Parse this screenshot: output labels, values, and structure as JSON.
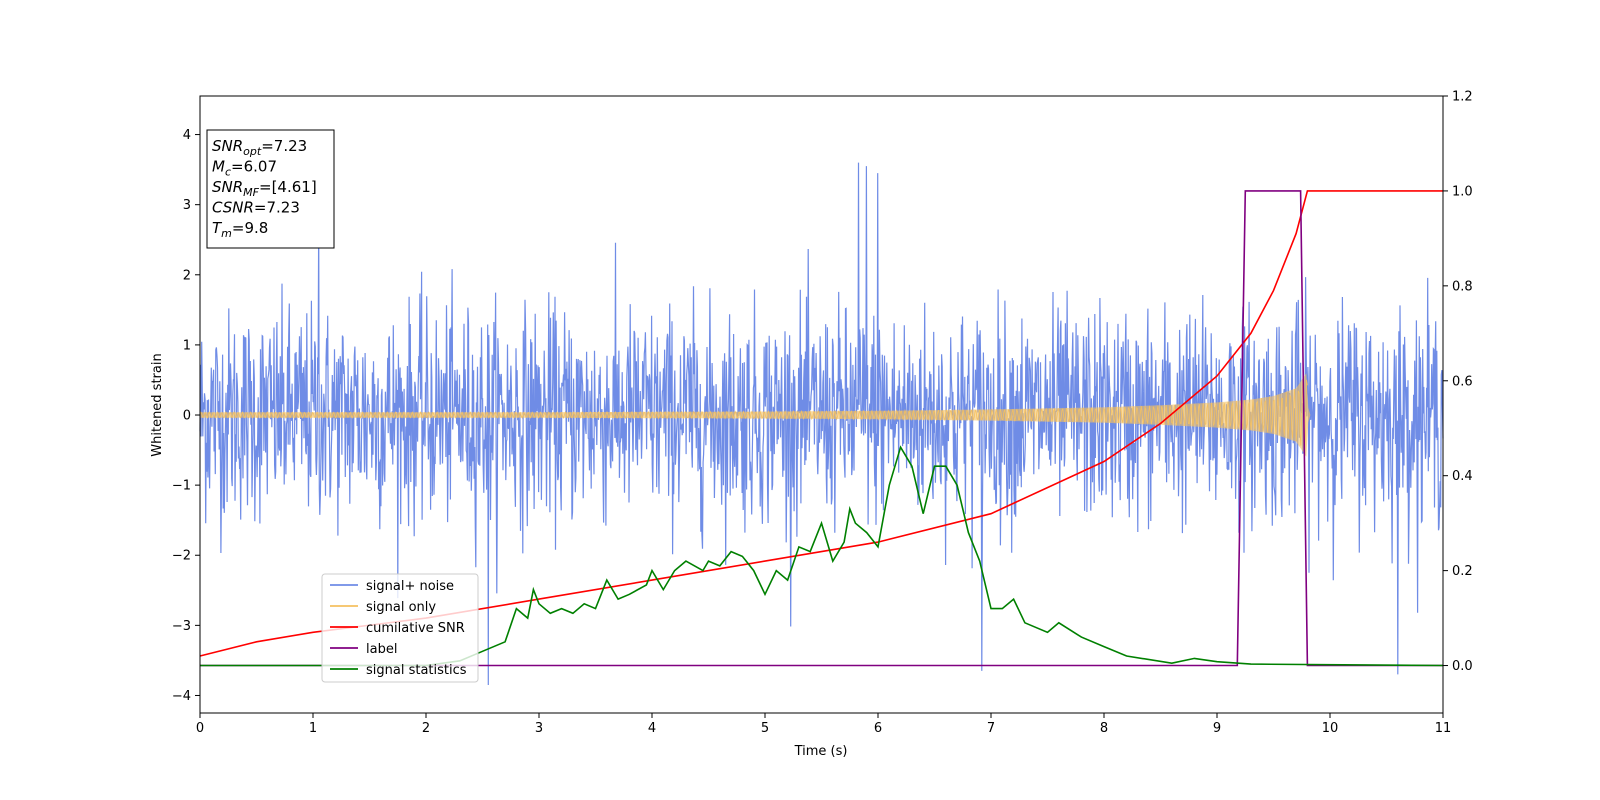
{
  "chart_data": {
    "type": "line",
    "xlabel": "Time (s)",
    "ylabel": "Whitened strain",
    "xlim": [
      0,
      11
    ],
    "ylim_left": [
      -4.25,
      4.55
    ],
    "ylim_right": [
      -0.1,
      1.2
    ],
    "x_ticks": [
      "0",
      "1",
      "2",
      "3",
      "4",
      "5",
      "6",
      "7",
      "8",
      "9",
      "10",
      "11"
    ],
    "y_ticks_left": [
      "−4",
      "−3",
      "−2",
      "−1",
      "0",
      "1",
      "2",
      "3",
      "4"
    ],
    "y_ticks_right": [
      "0.0",
      "0.2",
      "0.4",
      "0.6",
      "0.8",
      "1.0",
      "1.2"
    ],
    "grid": false,
    "legend_position": "lower-left",
    "info_box": {
      "lines": [
        {
          "symbol": "SNR",
          "sub": "opt",
          "rest": "=7.23"
        },
        {
          "symbol": "M",
          "sub": "c",
          "rest": "=6.07"
        },
        {
          "symbol": "SNR",
          "sub": "MF",
          "rest": "=[4.61]"
        },
        {
          "symbol": "CSNR",
          "sub": "",
          "rest": "=7.23"
        },
        {
          "symbol": "T",
          "sub": "m",
          "rest": "=9.8"
        }
      ]
    },
    "series": [
      {
        "name": "signal+ noise",
        "axis": "left",
        "color": "#6f8ce6",
        "description_values": {
          "mean": 0,
          "std": 0.75,
          "min": -3.85,
          "max": 3.6,
          "n_samples": 2200
        },
        "extreme_points": [
          [
            2.55,
            -3.85
          ],
          [
            10.6,
            -3.7
          ],
          [
            5.83,
            3.6
          ],
          [
            5.9,
            3.55
          ],
          [
            6.92,
            -3.65
          ],
          [
            1.05,
            2.78
          ],
          [
            6.0,
            3.45
          ]
        ]
      },
      {
        "name": "signal only",
        "axis": "left",
        "color": "#f5c160",
        "envelope": [
          [
            0,
            0.04
          ],
          [
            1,
            0.04
          ],
          [
            2,
            0.04
          ],
          [
            3,
            0.04
          ],
          [
            4,
            0.045
          ],
          [
            5,
            0.05
          ],
          [
            6,
            0.06
          ],
          [
            7,
            0.08
          ],
          [
            8,
            0.11
          ],
          [
            8.5,
            0.14
          ],
          [
            9,
            0.18
          ],
          [
            9.3,
            0.22
          ],
          [
            9.5,
            0.27
          ],
          [
            9.7,
            0.38
          ],
          [
            9.8,
            0.62
          ],
          [
            9.81,
            0.0
          ],
          [
            11,
            0.0
          ]
        ]
      },
      {
        "name": "cumilative SNR",
        "axis": "right",
        "color": "#ff0000",
        "points": [
          [
            0,
            0.02
          ],
          [
            0.5,
            0.05
          ],
          [
            1,
            0.07
          ],
          [
            2,
            0.1
          ],
          [
            3,
            0.14
          ],
          [
            4,
            0.18
          ],
          [
            5,
            0.22
          ],
          [
            6,
            0.26
          ],
          [
            7,
            0.32
          ],
          [
            8,
            0.43
          ],
          [
            8.5,
            0.51
          ],
          [
            9,
            0.61
          ],
          [
            9.3,
            0.7
          ],
          [
            9.5,
            0.79
          ],
          [
            9.7,
            0.91
          ],
          [
            9.8,
            1.0
          ],
          [
            11,
            1.0
          ]
        ]
      },
      {
        "name": "label",
        "axis": "right",
        "color": "#800080",
        "points": [
          [
            0,
            0.0
          ],
          [
            9.18,
            0.0
          ],
          [
            9.25,
            1.0
          ],
          [
            9.74,
            1.0
          ],
          [
            9.8,
            0.0
          ],
          [
            11,
            0.0
          ]
        ]
      },
      {
        "name": "signal statistics",
        "axis": "right",
        "color": "#008000",
        "points": [
          [
            0,
            0.0
          ],
          [
            2.0,
            0.0
          ],
          [
            2.3,
            0.01
          ],
          [
            2.5,
            0.03
          ],
          [
            2.7,
            0.05
          ],
          [
            2.8,
            0.12
          ],
          [
            2.9,
            0.1
          ],
          [
            2.95,
            0.16
          ],
          [
            3.0,
            0.13
          ],
          [
            3.1,
            0.11
          ],
          [
            3.2,
            0.12
          ],
          [
            3.3,
            0.11
          ],
          [
            3.4,
            0.13
          ],
          [
            3.5,
            0.12
          ],
          [
            3.6,
            0.18
          ],
          [
            3.7,
            0.14
          ],
          [
            3.8,
            0.15
          ],
          [
            3.95,
            0.17
          ],
          [
            4.0,
            0.2
          ],
          [
            4.1,
            0.16
          ],
          [
            4.2,
            0.2
          ],
          [
            4.3,
            0.22
          ],
          [
            4.45,
            0.2
          ],
          [
            4.5,
            0.22
          ],
          [
            4.6,
            0.21
          ],
          [
            4.7,
            0.24
          ],
          [
            4.8,
            0.23
          ],
          [
            4.9,
            0.2
          ],
          [
            5.0,
            0.15
          ],
          [
            5.1,
            0.2
          ],
          [
            5.2,
            0.18
          ],
          [
            5.3,
            0.25
          ],
          [
            5.4,
            0.24
          ],
          [
            5.5,
            0.3
          ],
          [
            5.6,
            0.22
          ],
          [
            5.7,
            0.26
          ],
          [
            5.75,
            0.33
          ],
          [
            5.8,
            0.3
          ],
          [
            5.9,
            0.28
          ],
          [
            6.0,
            0.25
          ],
          [
            6.1,
            0.38
          ],
          [
            6.2,
            0.46
          ],
          [
            6.3,
            0.42
          ],
          [
            6.4,
            0.32
          ],
          [
            6.5,
            0.42
          ],
          [
            6.6,
            0.42
          ],
          [
            6.7,
            0.38
          ],
          [
            6.8,
            0.28
          ],
          [
            6.9,
            0.22
          ],
          [
            7.0,
            0.12
          ],
          [
            7.1,
            0.12
          ],
          [
            7.2,
            0.14
          ],
          [
            7.3,
            0.09
          ],
          [
            7.5,
            0.07
          ],
          [
            7.6,
            0.09
          ],
          [
            7.8,
            0.06
          ],
          [
            8.0,
            0.04
          ],
          [
            8.2,
            0.02
          ],
          [
            8.6,
            0.005
          ],
          [
            8.8,
            0.015
          ],
          [
            9.0,
            0.008
          ],
          [
            9.3,
            0.003
          ],
          [
            11,
            0.0
          ]
        ]
      }
    ]
  }
}
